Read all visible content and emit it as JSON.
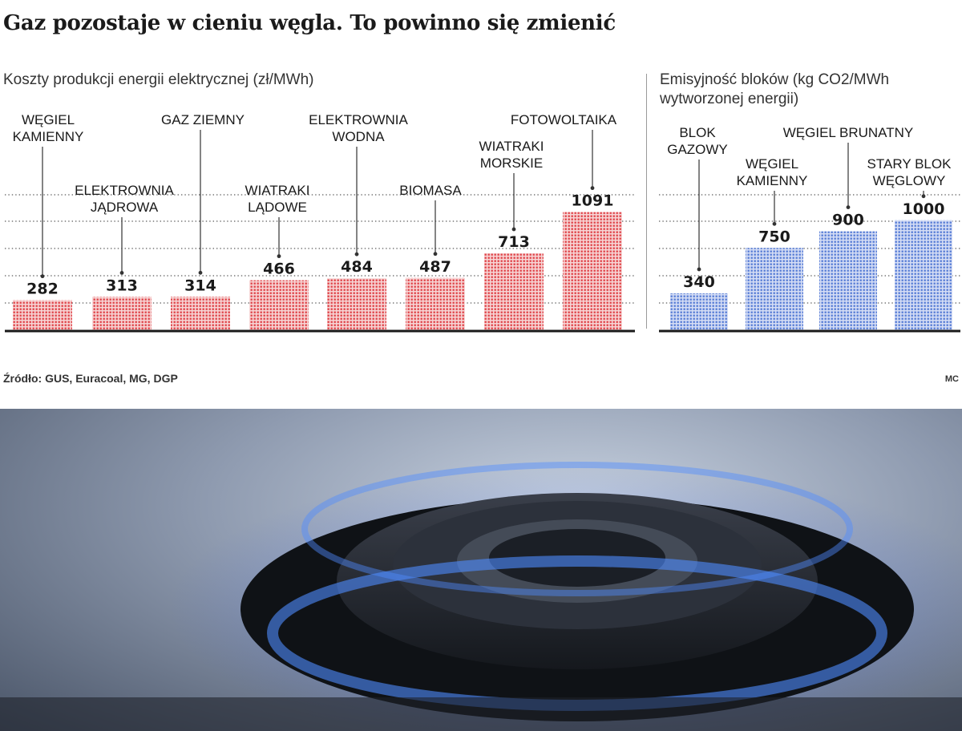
{
  "headline": "Gaz pozostaje w cieniu węgla. To powinno się zmienić",
  "source": "Źródło: GUS, Euracoal, MG, DGP",
  "credit": "MC",
  "colors": {
    "cost": "#e0474c",
    "emissions": "#5a7fd6",
    "baseline": "#1a1a1a"
  },
  "photo": {
    "icon": "gas-burner-flame-photo"
  },
  "chart_data": [
    {
      "type": "bar",
      "title": "Koszty produkcji energii elektrycznej (zł/MWh)",
      "categories": [
        "WĘGIEL KAMIENNY",
        "ELEKTROWNIA JĄDROWA",
        "GAZ ZIEMNY",
        "WIATRAKI LĄDOWE",
        "ELEKTROWNIA WODNA",
        "BIOMASA",
        "WIATRAKI MORSKIE",
        "FOTOWOLTAIKA"
      ],
      "label_lines": [
        [
          "WĘGIEL",
          "KAMIENNY"
        ],
        [
          "ELEKTROWNIA",
          "JĄDROWA"
        ],
        [
          "GAZ ZIEMNY"
        ],
        [
          "WIATRAKI",
          "LĄDOWE"
        ],
        [
          "ELEKTROWNIA",
          "WODNA"
        ],
        [
          "BIOMASA"
        ],
        [
          "WIATRAKI",
          "MORSKIE"
        ],
        [
          "FOTOWOLTAIKA"
        ]
      ],
      "values": [
        282,
        313,
        314,
        466,
        484,
        487,
        713,
        1091
      ],
      "ylim": [
        0,
        1250
      ],
      "grid": true
    },
    {
      "type": "bar",
      "title": "Emisyjność bloków (kg CO2/MWh wytworzonej energii)",
      "categories": [
        "BLOK GAZOWY",
        "WĘGIEL KAMIENNY",
        "WĘGIEL BRUNATNY",
        "STARY BLOK WĘGLOWY"
      ],
      "label_lines": [
        [
          "BLOK",
          "GAZOWY"
        ],
        [
          "WĘGIEL",
          "KAMIENNY"
        ],
        [
          "WĘGIEL BRUNATNY"
        ],
        [
          "STARY BLOK",
          "WĘGLOWY"
        ]
      ],
      "values": [
        340,
        750,
        900,
        1000
      ],
      "ylim": [
        0,
        1230
      ],
      "grid": true
    }
  ]
}
